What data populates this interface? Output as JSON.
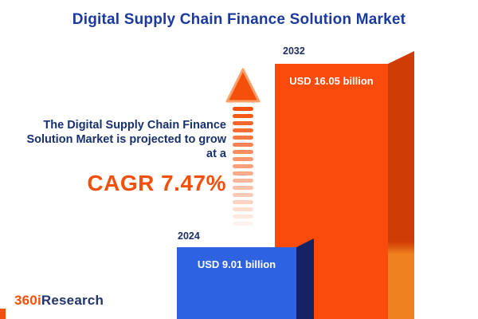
{
  "title": "Digital Supply Chain Finance Solution Market",
  "description": {
    "line1": "The Digital Supply Chain Finance",
    "line2": "Solution Market is projected to grow",
    "line3": "at a",
    "cagr": "CAGR 7.47%"
  },
  "chart_data": {
    "type": "bar",
    "title": "Digital Supply Chain Finance Solution Market",
    "categories": [
      "2024",
      "2032"
    ],
    "values": [
      9.01,
      16.05
    ],
    "unit": "USD billion",
    "bar_labels": [
      "USD 9.01 billion",
      "USD 16.05 billion"
    ],
    "bar_colors": [
      "#2d63e1",
      "#f94c0c"
    ],
    "annotations": [
      "The Digital Supply Chain Finance Solution Market is projected to grow at a CAGR 7.47%"
    ],
    "cagr": "7.47%",
    "legend": "none",
    "grid": false,
    "axes_hidden": true
  },
  "logo": {
    "prefix": "360i",
    "suffix": "Research"
  },
  "colors": {
    "accent_orange": "#f4500b",
    "bar_blue": "#2d63e1",
    "bar_blue_side": "#132364",
    "bar_orange": "#f94c0c",
    "bar_orange_side": "#cf3c05",
    "navy_text": "#1b3a9e"
  }
}
